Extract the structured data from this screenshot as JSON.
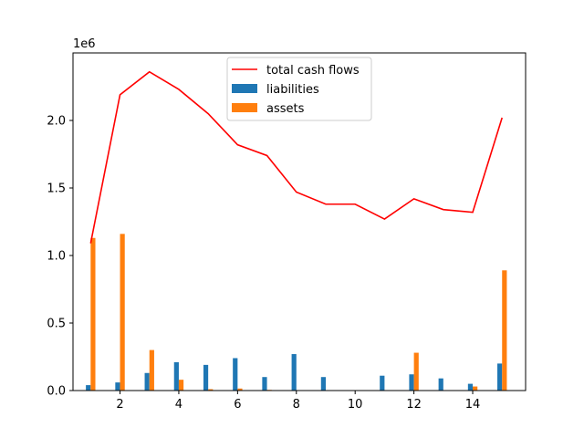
{
  "chart_data": {
    "type": "bar",
    "x": [
      1,
      2,
      3,
      4,
      5,
      6,
      7,
      8,
      9,
      10,
      11,
      12,
      13,
      14,
      15
    ],
    "series": [
      {
        "name": "total cash flows",
        "kind": "line",
        "color": "#ff0000",
        "values": [
          1090000,
          2190000,
          2360000,
          2230000,
          2050000,
          1820000,
          1740000,
          1470000,
          1380000,
          1380000,
          1270000,
          1420000,
          1340000,
          1320000,
          2020000
        ]
      },
      {
        "name": "liabilities",
        "kind": "bar",
        "color": "#1f77b4",
        "values": [
          40000,
          60000,
          130000,
          210000,
          190000,
          240000,
          100000,
          270000,
          100000,
          0,
          110000,
          120000,
          90000,
          50000,
          200000
        ]
      },
      {
        "name": "assets",
        "kind": "bar",
        "color": "#ff7f0e",
        "values": [
          1130000,
          1160000,
          300000,
          80000,
          10000,
          15000,
          5000,
          0,
          0,
          0,
          0,
          280000,
          0,
          30000,
          890000
        ]
      }
    ],
    "xlim": [
      0.4,
      15.8
    ],
    "ylim": [
      0,
      2500000
    ],
    "xticks": [
      2,
      4,
      6,
      8,
      10,
      12,
      14
    ],
    "yticks": [
      0,
      500000,
      1000000,
      1500000,
      2000000
    ],
    "ytick_labels": [
      "0.0",
      "0.5",
      "1.0",
      "1.5",
      "2.0"
    ],
    "y_offset_label": "1e6",
    "legend_position": "top-center",
    "grid": false
  }
}
